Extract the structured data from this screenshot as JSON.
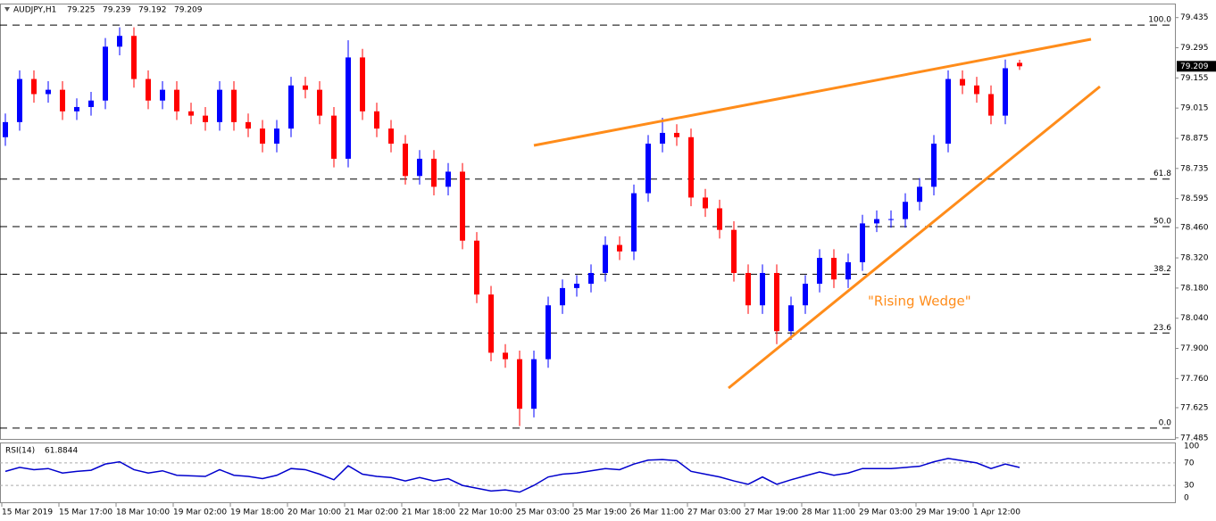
{
  "chart_data": [
    {
      "type": "candlestick",
      "title": "AUDJPY,H1",
      "categories": [
        "15 Mar 2019",
        null,
        null,
        null,
        "15 Mar 17:00",
        null,
        null,
        null,
        "18 Mar 10:00",
        null,
        null,
        null,
        "19 Mar 02:00",
        null,
        null,
        null,
        "19 Mar 18:00",
        null,
        null,
        null,
        "20 Mar 10:00",
        null,
        null,
        null,
        "21 Mar 02:00",
        null,
        null,
        null,
        "21 Mar 18:00",
        null,
        null,
        null,
        "22 Mar 10:00",
        null,
        null,
        null,
        "25 Mar 03:00",
        null,
        null,
        null,
        "25 Mar 19:00",
        null,
        null,
        null,
        "26 Mar 11:00",
        null,
        null,
        null,
        "27 Mar 03:00",
        null,
        null,
        null,
        "27 Mar 19:00",
        null,
        null,
        null,
        "28 Mar 11:00",
        null,
        null,
        null,
        "29 Mar 03:00",
        null,
        null,
        null,
        "29 Mar 19:00",
        null,
        null,
        null,
        "1 Apr 12:00",
        null,
        null,
        null
      ],
      "open": [
        78.88,
        78.95,
        79.15,
        79.08,
        79.1,
        79.0,
        79.02,
        79.05,
        79.3,
        79.35,
        79.15,
        79.05,
        79.1,
        79.0,
        78.98,
        78.95,
        79.1,
        78.95,
        78.92,
        78.85,
        78.92,
        79.12,
        79.1,
        78.98,
        78.78,
        79.25,
        79.0,
        78.92,
        78.85,
        78.7,
        78.78,
        78.65,
        78.72,
        78.4,
        78.15,
        77.88,
        77.85,
        77.62,
        77.85,
        78.1,
        78.18,
        78.2,
        78.25,
        78.38,
        78.35,
        78.62,
        78.85,
        78.9,
        78.88,
        78.6,
        78.55,
        78.45,
        78.25,
        78.1,
        78.25,
        77.98,
        78.1,
        78.2,
        78.32,
        78.22,
        78.3,
        78.48,
        78.5,
        78.5,
        78.58,
        78.65,
        78.85,
        79.15,
        79.12,
        79.08,
        78.98,
        79.225
      ],
      "high": [
        78.99,
        79.19,
        79.19,
        79.14,
        79.14,
        79.06,
        79.09,
        79.34,
        79.39,
        79.39,
        79.19,
        79.14,
        79.14,
        79.04,
        79.02,
        79.14,
        79.14,
        78.99,
        78.96,
        78.96,
        79.16,
        79.16,
        79.14,
        79.02,
        79.33,
        79.29,
        79.04,
        78.96,
        78.89,
        78.82,
        78.82,
        78.76,
        78.76,
        78.44,
        78.19,
        77.92,
        77.89,
        77.89,
        78.14,
        78.22,
        78.24,
        78.29,
        78.42,
        78.42,
        78.66,
        78.89,
        78.97,
        78.94,
        78.92,
        78.64,
        78.59,
        78.49,
        78.29,
        78.29,
        78.29,
        78.14,
        78.24,
        78.36,
        78.36,
        78.34,
        78.52,
        78.54,
        78.54,
        78.62,
        78.69,
        78.89,
        79.19,
        79.19,
        79.16,
        79.12,
        79.24,
        79.239
      ],
      "low": [
        78.84,
        78.91,
        79.04,
        79.04,
        78.96,
        78.96,
        78.98,
        79.01,
        79.26,
        79.11,
        79.01,
        79.01,
        78.96,
        78.94,
        78.91,
        78.91,
        78.91,
        78.88,
        78.81,
        78.81,
        78.88,
        79.06,
        78.94,
        78.74,
        78.74,
        78.96,
        78.88,
        78.81,
        78.66,
        78.66,
        78.61,
        78.61,
        78.36,
        78.11,
        77.84,
        77.81,
        77.54,
        77.58,
        77.81,
        78.06,
        78.14,
        78.16,
        78.21,
        78.31,
        78.31,
        78.58,
        78.81,
        78.84,
        78.56,
        78.51,
        78.41,
        78.21,
        78.06,
        78.06,
        77.92,
        77.94,
        78.06,
        78.16,
        78.18,
        78.18,
        78.26,
        78.44,
        78.46,
        78.46,
        78.54,
        78.61,
        78.81,
        79.08,
        79.04,
        78.94,
        78.94,
        79.192
      ],
      "close": [
        78.95,
        79.15,
        79.08,
        79.1,
        79.0,
        79.02,
        79.05,
        79.3,
        79.35,
        79.15,
        79.05,
        79.1,
        79.0,
        78.98,
        78.95,
        79.1,
        78.95,
        78.92,
        78.85,
        78.92,
        79.12,
        79.1,
        78.98,
        78.78,
        79.25,
        79.0,
        78.92,
        78.85,
        78.7,
        78.78,
        78.65,
        78.72,
        78.4,
        78.15,
        77.88,
        77.85,
        77.62,
        77.85,
        78.1,
        78.18,
        78.2,
        78.25,
        78.38,
        78.35,
        78.62,
        78.85,
        78.9,
        78.88,
        78.6,
        78.55,
        78.45,
        78.25,
        78.1,
        78.25,
        77.98,
        78.1,
        78.2,
        78.32,
        78.22,
        78.3,
        78.48,
        78.5,
        78.5,
        78.58,
        78.65,
        78.85,
        79.15,
        79.12,
        79.08,
        78.98,
        79.2,
        79.209
      ],
      "up_color": "#0000ff",
      "down_color": "#ff0000",
      "ylim": [
        77.48,
        79.5
      ],
      "yticks": [
        79.435,
        79.295,
        79.155,
        79.015,
        78.875,
        78.735,
        78.595,
        {
          "value": 78.46,
          "label": "78.460"
        },
        {
          "value": 78.32,
          "label": "78.320"
        },
        {
          "value": 78.18,
          "label": "78.180"
        },
        {
          "value": 78.04,
          "label": "78.040"
        },
        {
          "value": 77.9,
          "label": "77.900"
        },
        {
          "value": 77.76,
          "label": "77.760"
        },
        77.625,
        77.485
      ],
      "fib": {
        "high": 79.4,
        "low": 77.53,
        "levels": [
          {
            "value": 100,
            "label": "100.0"
          },
          61.8,
          {
            "value": 50,
            "label": "50.0"
          },
          38.2,
          23.6,
          {
            "value": 0,
            "label": "0.0"
          }
        ]
      },
      "annotation": "\"Rising Wedge\""
    },
    {
      "type": "line",
      "title": "RSI(14)",
      "color": "#0000cd",
      "values": [
        55,
        62,
        58,
        60,
        52,
        55,
        57,
        68,
        72,
        58,
        52,
        56,
        48,
        47,
        46,
        58,
        48,
        46,
        42,
        48,
        60,
        58,
        50,
        40,
        65,
        50,
        46,
        44,
        38,
        44,
        38,
        42,
        30,
        25,
        20,
        22,
        18,
        30,
        45,
        50,
        52,
        56,
        60,
        58,
        68,
        75,
        76,
        74,
        55,
        50,
        45,
        38,
        32,
        45,
        32,
        40,
        47,
        54,
        48,
        52,
        60,
        60,
        60,
        62,
        64,
        72,
        78,
        74,
        70,
        60,
        68,
        61.8844
      ],
      "ylim": [
        0,
        100
      ],
      "yticks": [
        100,
        70,
        30,
        0
      ]
    }
  ]
}
